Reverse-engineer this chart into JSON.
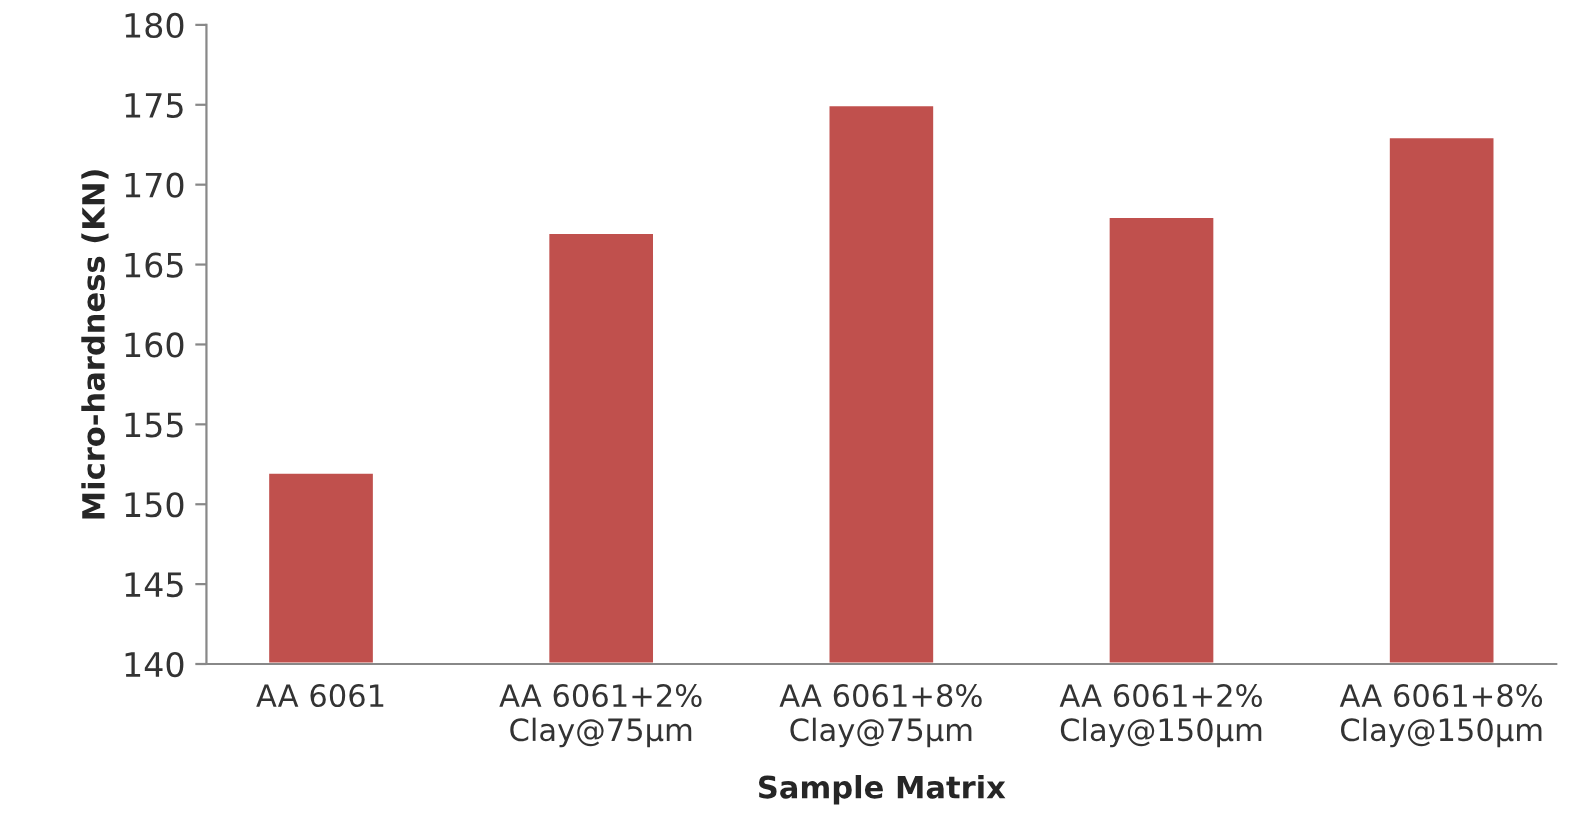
{
  "chart_data": {
    "type": "bar",
    "xlabel": "Sample Matrix",
    "ylabel": "Micro-hardness (KN)",
    "categories": [
      "AA 6061",
      "AA 6061+2%\nClay@75µm",
      "AA 6061+8%\nClay@75µm",
      "AA 6061+2%\nClay@150µm",
      "AA 6061+8%\nClay@150µm"
    ],
    "values": [
      152,
      167,
      175,
      168,
      173
    ],
    "color": "#c0504d",
    "ylim": [
      140,
      180
    ],
    "yticks": [
      140,
      145,
      150,
      155,
      160,
      165,
      170,
      175,
      180
    ],
    "grid": false
  }
}
